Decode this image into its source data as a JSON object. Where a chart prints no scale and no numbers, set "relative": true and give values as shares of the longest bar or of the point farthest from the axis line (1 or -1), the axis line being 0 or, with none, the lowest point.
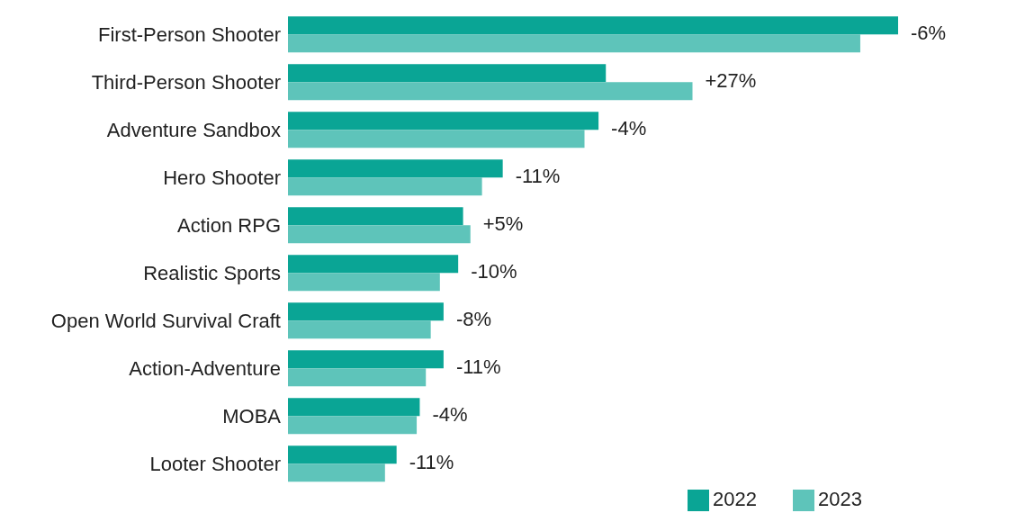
{
  "chart_data": {
    "type": "bar",
    "orientation": "horizontal",
    "relative": true,
    "categories": [
      "First-Person Shooter",
      "Third-Person Shooter",
      "Adventure Sandbox",
      "Hero Shooter",
      "Action RPG",
      "Realistic Sports",
      "Open World Survival Craft",
      "Action-Adventure",
      "MOBA",
      "Looter Shooter"
    ],
    "series": [
      {
        "name": "2022",
        "color": "#0aa595",
        "values": [
          1,
          0.521,
          0.509,
          0.352,
          0.287,
          0.279,
          0.255,
          0.255,
          0.216,
          0.178
        ]
      },
      {
        "name": "2023",
        "color": "#5ec4ba",
        "values": [
          0.938,
          0.663,
          0.486,
          0.318,
          0.299,
          0.249,
          0.234,
          0.226,
          0.211,
          0.159
        ]
      }
    ],
    "annotations": [
      "-6%",
      "+27%",
      "-4%",
      "-11%",
      "+5%",
      "-10%",
      "-8%",
      "-11%",
      "-4%",
      "-11%"
    ],
    "legend": "bottom right",
    "grid": false
  }
}
